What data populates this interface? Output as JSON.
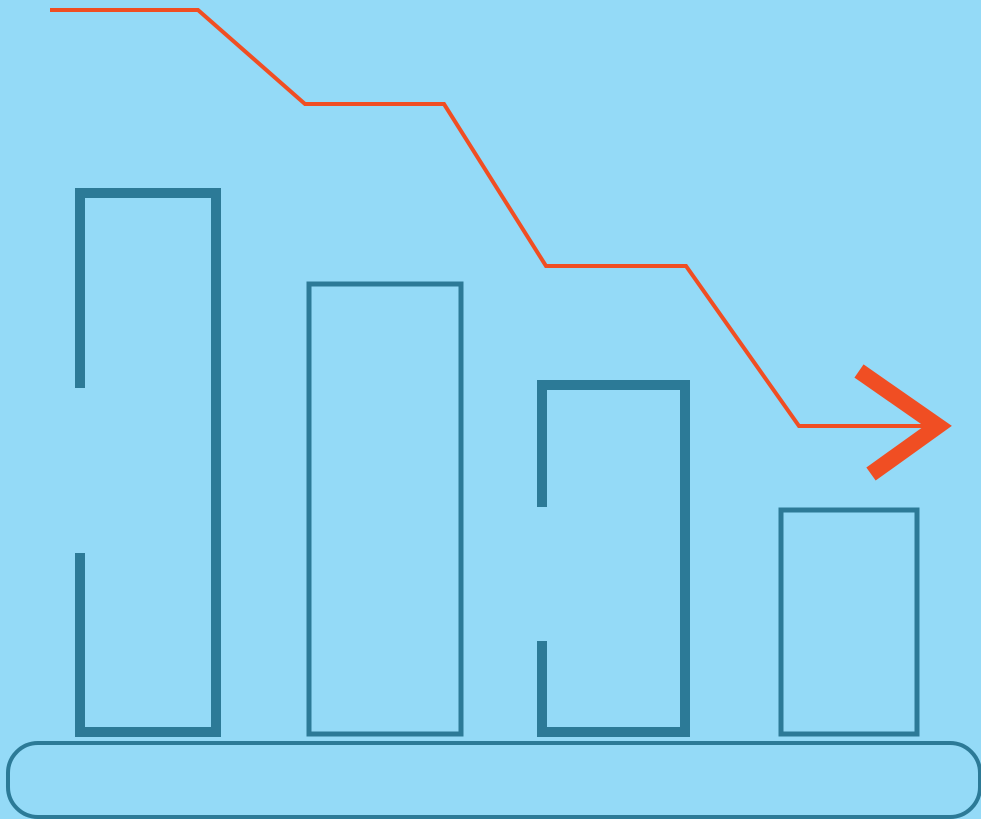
{
  "colors": {
    "background": "#94DAF7",
    "bar_outline": "#2C7A97",
    "trend_line": "#F04E23"
  },
  "icons": {
    "illustration": "decreasing-bar-chart-with-downward-trend-arrow"
  },
  "bars": {
    "relative_heights": [
      1.0,
      0.83,
      0.65,
      0.42
    ]
  }
}
